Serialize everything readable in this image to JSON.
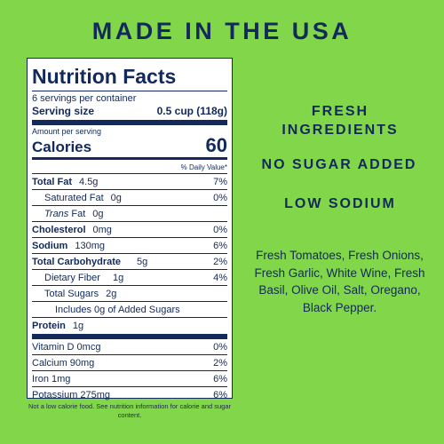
{
  "headline": "MADE IN THE USA",
  "label": {
    "title": "Nutrition Facts",
    "servings": "6 servings per container",
    "serving_size_label": "Serving size",
    "serving_size_value": "0.5 cup (118g)",
    "amount_per_serving": "Amount per serving",
    "calories_label": "Calories",
    "calories_value": "60",
    "dv_header": "% Daily Value*",
    "rows": [
      {
        "name": "Total Fat",
        "amount": "4.5g",
        "dv": "7%"
      },
      {
        "name": "Saturated Fat",
        "amount": "0g",
        "dv": "0%"
      },
      {
        "name": "Trans",
        "name_suffix": " Fat",
        "amount": "0g",
        "dv": ""
      },
      {
        "name": "Cholesterol",
        "amount": "0mg",
        "dv": "0%"
      },
      {
        "name": "Sodium",
        "amount": "130mg",
        "dv": "6%"
      },
      {
        "name": "Total Carbohydrate",
        "amount": "5g",
        "dv": "2%"
      },
      {
        "name": "Dietary Fiber",
        "amount": "1g",
        "dv": "4%"
      },
      {
        "name": "Total Sugars",
        "amount": "2g",
        "dv": ""
      },
      {
        "name": "Includes 0g of Added Sugars",
        "amount": "",
        "dv": ""
      },
      {
        "name": "Protein",
        "amount": "1g",
        "dv": ""
      }
    ],
    "vitamins": [
      {
        "name": "Vitamin D 0mcg",
        "dv": "0%"
      },
      {
        "name": "Calcium 90mg",
        "dv": "2%"
      },
      {
        "name": "Iron 1mg",
        "dv": "6%"
      },
      {
        "name": "Potassium 275mg",
        "dv": "6%"
      }
    ]
  },
  "footnote": "Not a low calorie food. See nutrition information for calorie and sugar content.",
  "claims": {
    "fresh_line1": "FRESH",
    "fresh_line2": "INGREDIENTS",
    "no_sugar": "NO SUGAR ADDED",
    "low_sodium": "LOW SODIUM"
  },
  "ingredients": "Fresh Tomatoes, Fresh Onions, Fresh Garlic, White Wine, Fresh Basil, Olive Oil, Salt, Oregano, Black Pepper.",
  "colors": {
    "background": "#82d64a",
    "text": "#13295b",
    "label_bg": "#ffffff"
  }
}
